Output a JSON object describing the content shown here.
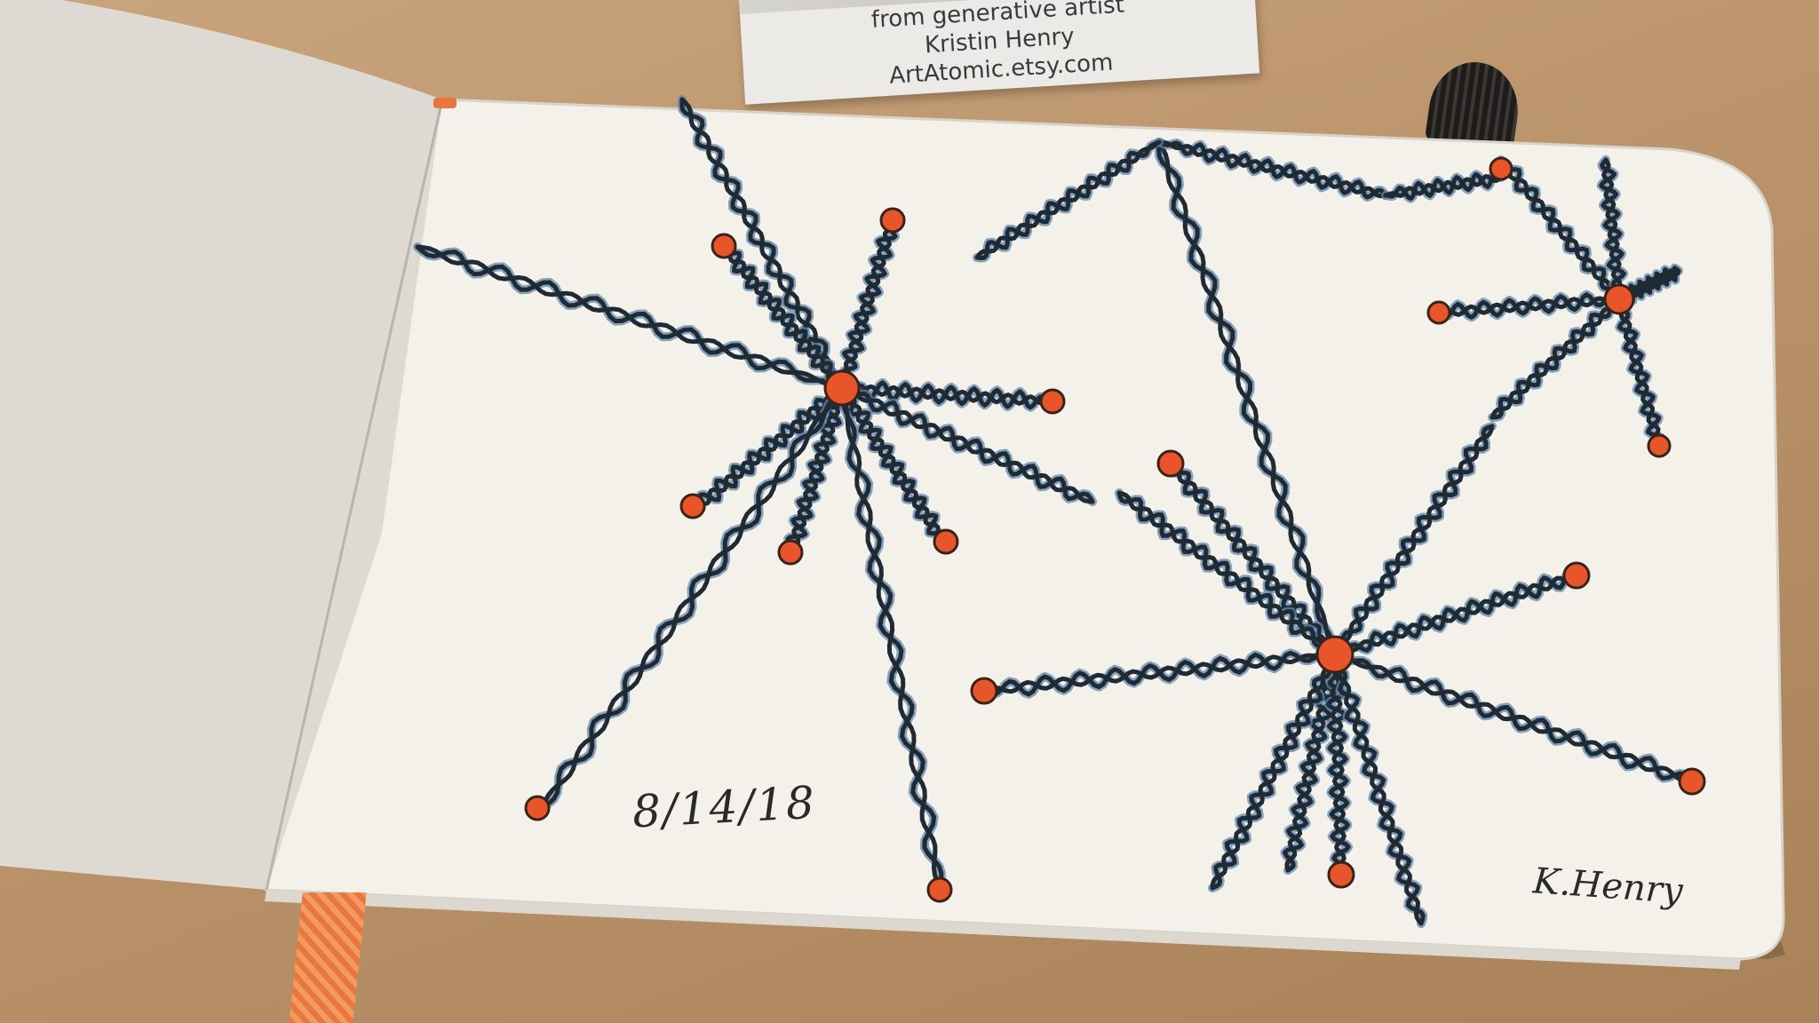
{
  "card": {
    "line1": "from generative artist",
    "line2": "Kristin Henry",
    "line3": "ArtAtomic.etsy.com"
  },
  "sketch": {
    "date": "8/14/18",
    "signature": "K.Henry",
    "colors": {
      "strand_outline": "#1f2a33",
      "strand_fill": "#5f86ad",
      "node_fill": "#e8552a",
      "paper": "#f3f1ea",
      "table": "#bb946b"
    }
  }
}
